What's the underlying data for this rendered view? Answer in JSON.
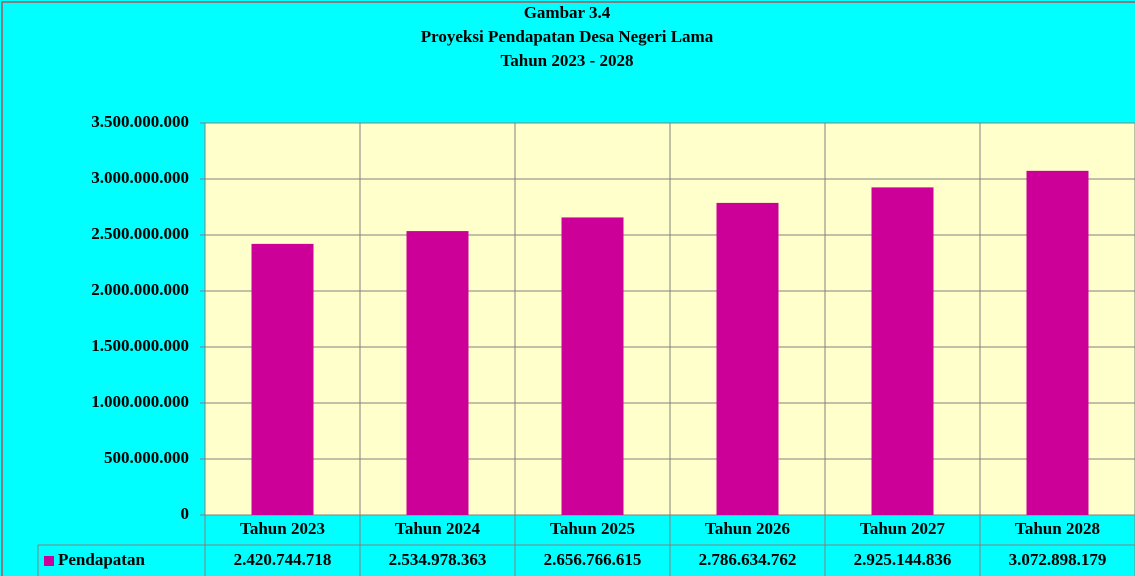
{
  "chart_data": {
    "type": "bar",
    "title": [
      "Gambar 3.4",
      "Proyeksi Pendapatan Desa Negeri Lama",
      "Tahun 2023 - 2028"
    ],
    "categories": [
      "Tahun 2023",
      "Tahun 2024",
      "Tahun 2025",
      "Tahun 2026",
      "Tahun 2027",
      "Tahun 2028"
    ],
    "series": [
      {
        "name": "Pendapatan",
        "color": "#cc0099",
        "values": [
          2420744718,
          2534978363,
          2656766615,
          2786634762,
          2925144836,
          3072898179
        ],
        "value_labels": [
          "2.420.744.718",
          "2.534.978.363",
          "2.656.766.615",
          "2.786.634.762",
          "2.925.144.836",
          "3.072.898.179"
        ]
      }
    ],
    "ylim": [
      0,
      3500000000
    ],
    "yticks": [
      0,
      {
        "value": 500000000,
        "label": "500.000.000"
      },
      {
        "value": 1000000000,
        "label": "1.000.000.000"
      },
      {
        "value": 1500000000,
        "label": "1.500.000.000"
      },
      {
        "value": 2000000000,
        "label": "2.000.000.000"
      },
      {
        "value": 2500000000,
        "label": "2.500.000.000"
      },
      {
        "value": 3000000000,
        "label": "3.000.000.000"
      },
      {
        "value": 3500000000,
        "label": "3.500.000.000"
      }
    ],
    "grid": true,
    "data_table": true
  }
}
